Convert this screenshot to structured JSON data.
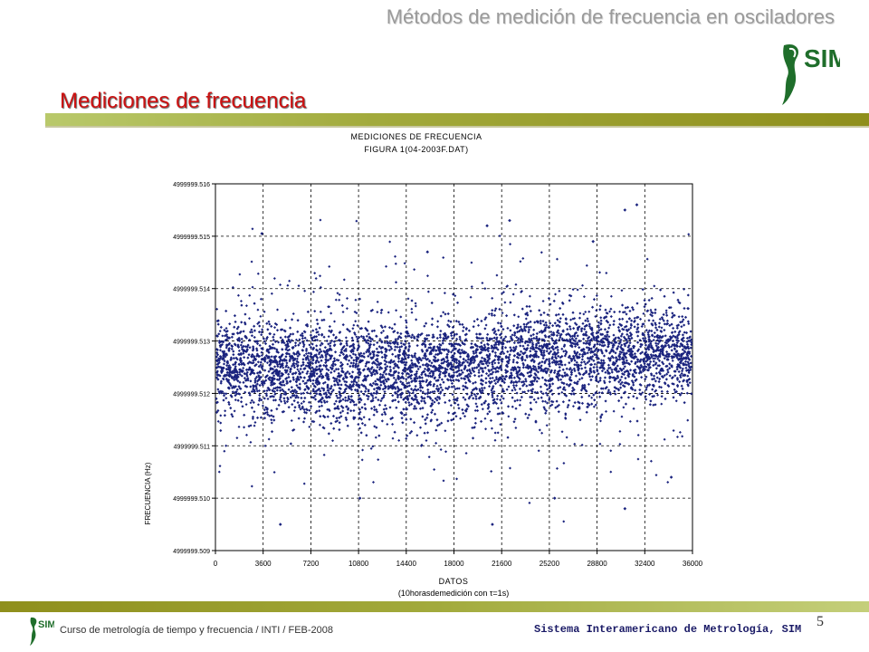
{
  "slide": {
    "header_title": "Métodos de medición de frecuencia en osciladores",
    "section_title": "Mediciones de frecuencia",
    "footer_left": "Curso de metrología de tiempo y frecuencia / INTI / FEB-2008",
    "footer_right": "Sistema Interamericano de Metrología, SIM",
    "page_number": "5",
    "logo_text": "SIM"
  },
  "colors": {
    "accent_red": "#cc1111",
    "olive_bar": "#a2aa3c",
    "marker_navy": "#1a237e"
  },
  "chart_data": {
    "type": "scatter",
    "title": "MEDICIONES DE FRECUENCIA",
    "subtitle": "FIGURA 1(04-2003F.DAT)",
    "xlabel": "DATOS",
    "xlabel2": "(10horasdemedición con τ=1s)",
    "ylabel": "FRECUENCIA (Hz)",
    "xlim": [
      0,
      36000
    ],
    "ylim": [
      4999999.509,
      4999999.516
    ],
    "x_ticks": [
      "0",
      "3600",
      "7200",
      "10800",
      "14400",
      "18000",
      "21600",
      "25200",
      "28800",
      "32400",
      "36000"
    ],
    "y_ticks": [
      "4999999.509",
      "4999999.510",
      "4999999.511",
      "4999999.512",
      "4999999.513",
      "4999999.514",
      "4999999.515",
      "4999999.516"
    ],
    "grid": "dashed",
    "marker": "diamond",
    "series_mean": 4999999.5126,
    "series_band": [
      4999999.5115,
      4999999.5138
    ],
    "outliers": [
      {
        "x": 3500,
        "y": 4999999.51505
      },
      {
        "x": 4900,
        "y": 4999999.5095
      },
      {
        "x": 20900,
        "y": 4999999.5095
      },
      {
        "x": 20500,
        "y": 4999999.5152
      },
      {
        "x": 22200,
        "y": 4999999.5153
      },
      {
        "x": 30900,
        "y": 4999999.5098
      },
      {
        "x": 30900,
        "y": 4999999.5155
      },
      {
        "x": 31800,
        "y": 4999999.5156
      },
      {
        "x": 34400,
        "y": 4999999.5104
      },
      {
        "x": 10900,
        "y": 4999999.51
      },
      {
        "x": 25600,
        "y": 4999999.51
      },
      {
        "x": 16000,
        "y": 4999999.5147
      },
      {
        "x": 28500,
        "y": 4999999.5149
      }
    ]
  }
}
